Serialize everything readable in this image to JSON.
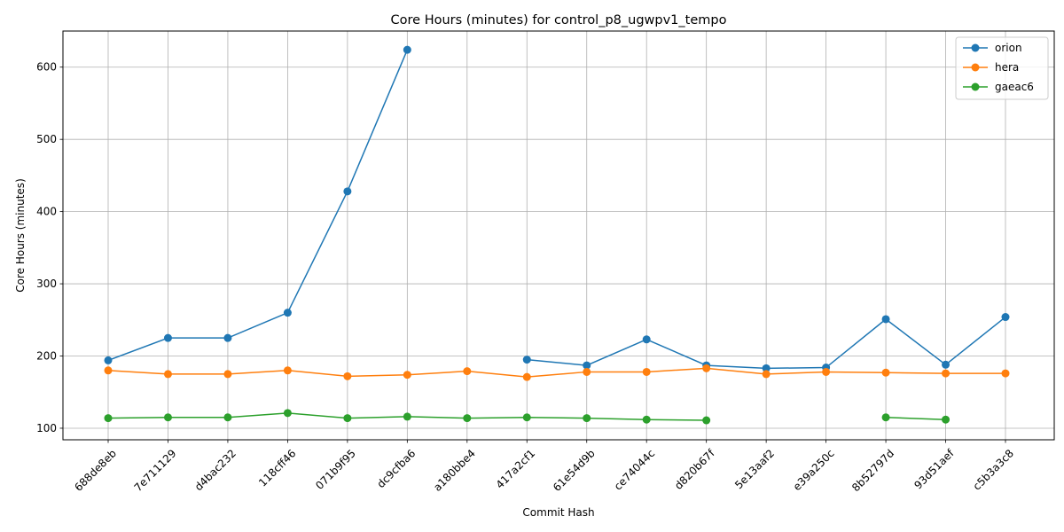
{
  "chart_data": {
    "type": "line",
    "title": "Core Hours (minutes) for control_p8_ugwpv1_tempo",
    "xlabel": "Commit Hash",
    "ylabel": "Core Hours (minutes)",
    "categories": [
      "688de8eb",
      "7e711129",
      "d4bac232",
      "118cff46",
      "071b9f95",
      "dc9cfba6",
      "a180bbe4",
      "417a2cf1",
      "61e54d9b",
      "ce74044c",
      "d820b67f",
      "5e13aaf2",
      "e39a250c",
      "8b52797d",
      "93d51aef",
      "c5b3a3c8"
    ],
    "ylim": [
      84,
      650
    ],
    "yticks": [
      100,
      200,
      300,
      400,
      500,
      600
    ],
    "grid": true,
    "legend_position": "top-right",
    "series": [
      {
        "name": "orion",
        "color": "#1f77b4",
        "values": [
          194,
          225,
          225,
          260,
          428,
          624,
          null,
          195,
          187,
          223,
          187,
          183,
          184,
          251,
          188,
          254
        ]
      },
      {
        "name": "hera",
        "color": "#ff7f0e",
        "values": [
          180,
          175,
          175,
          180,
          172,
          174,
          179,
          171,
          178,
          178,
          183,
          175,
          178,
          177,
          176,
          176
        ]
      },
      {
        "name": "gaeac6",
        "color": "#2ca02c",
        "values": [
          114,
          115,
          115,
          121,
          114,
          116,
          114,
          115,
          114,
          112,
          111,
          null,
          null,
          115,
          112,
          null
        ]
      }
    ]
  }
}
